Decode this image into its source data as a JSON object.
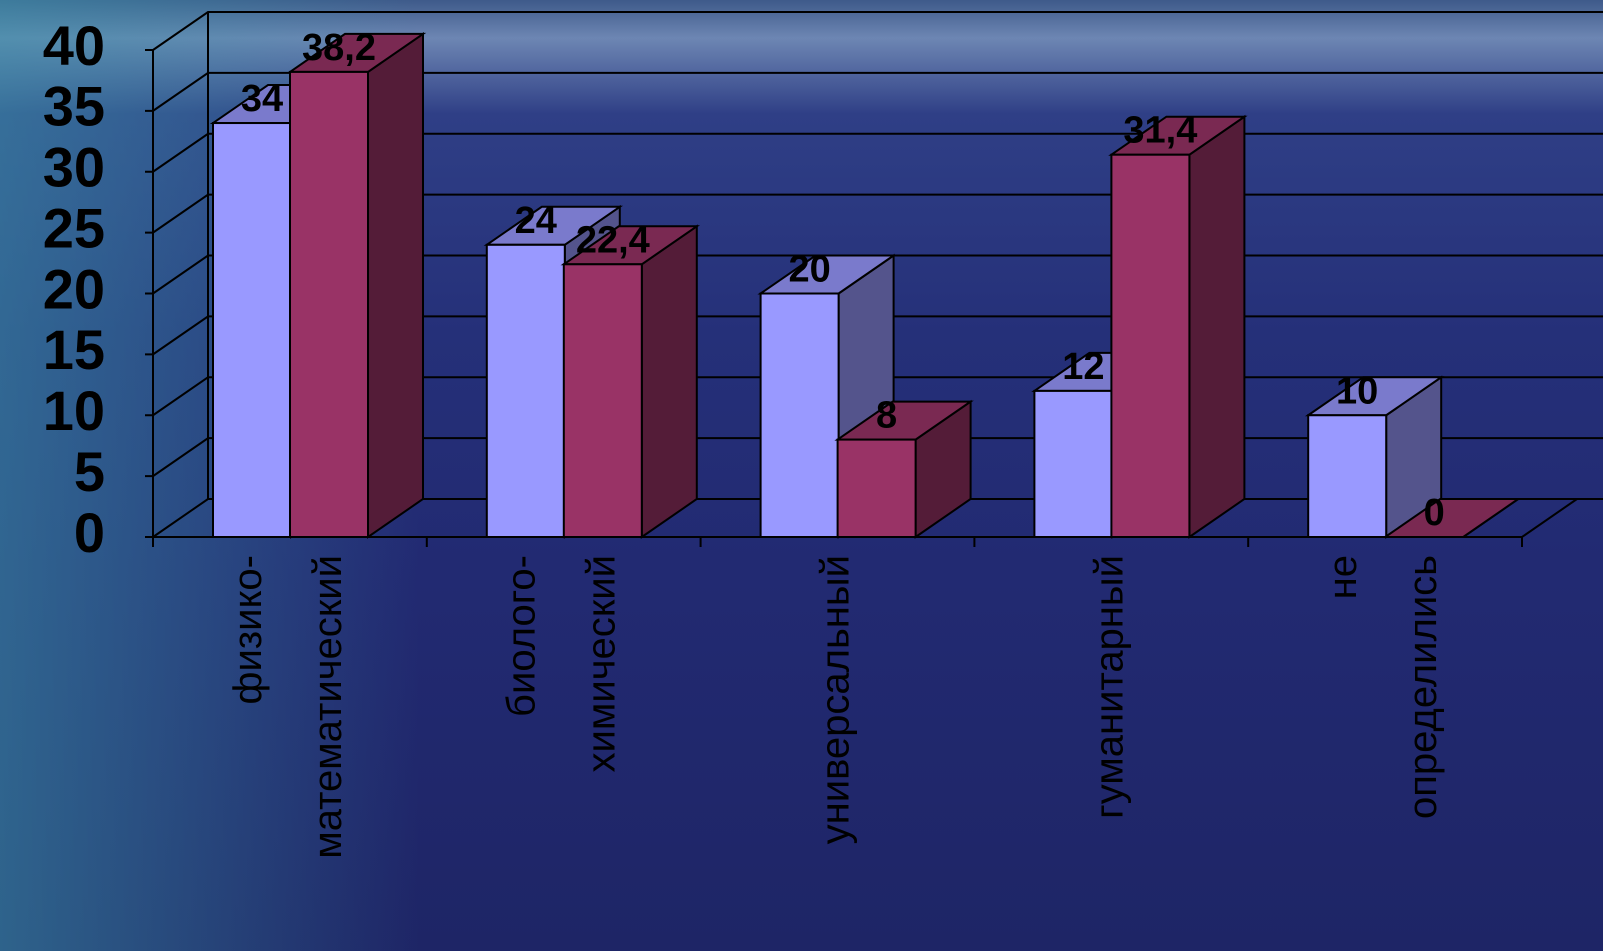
{
  "chart_data": {
    "type": "bar3d",
    "categories": [
      "физико-математический",
      "биолого-химический",
      "универсальный",
      "гуманитарный",
      "не определились"
    ],
    "series": [
      {
        "color": "#9999ff",
        "values": [
          34,
          24,
          20,
          12,
          10
        ]
      },
      {
        "color": "#993366",
        "values": [
          38.2,
          22.4,
          8,
          31.4,
          0
        ],
        "value_labels": [
          "38,2",
          "22,4",
          "8",
          "31,4",
          "0"
        ]
      }
    ],
    "ylim": [
      0,
      40
    ],
    "yticks": [
      0,
      5,
      10,
      15,
      20,
      25,
      30,
      35,
      40
    ],
    "grid": true
  }
}
